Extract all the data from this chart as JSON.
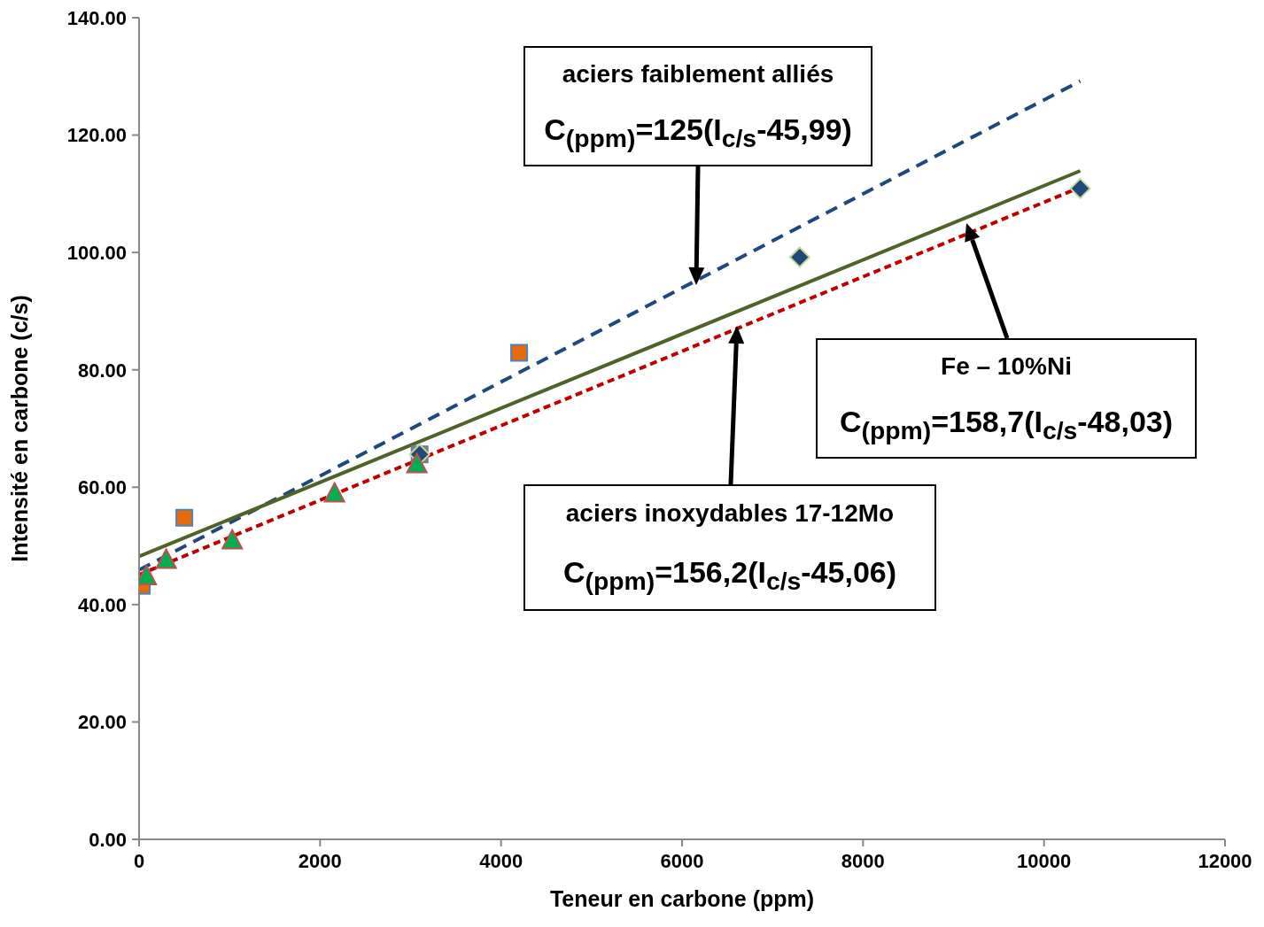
{
  "chart_data": {
    "type": "scatter",
    "xlabel": "Teneur en carbone (ppm)",
    "ylabel": "Intensité en carbone (c/s)",
    "xlim": [
      0,
      12000
    ],
    "xticks": [
      0,
      2000,
      4000,
      6000,
      8000,
      10000,
      12000
    ],
    "ylim": [
      0,
      140
    ],
    "yticks": [
      {
        "value": 0,
        "label": "0.00"
      },
      {
        "value": 20,
        "label": "20.00"
      },
      {
        "value": 40,
        "label": "40.00"
      },
      {
        "value": 60,
        "label": "60.00"
      },
      {
        "value": 80,
        "label": "80.00"
      },
      {
        "value": 100,
        "label": "100.00"
      },
      {
        "value": 120,
        "label": "120.00"
      },
      {
        "value": 140,
        "label": "140.00"
      }
    ],
    "grid": false,
    "series": [
      {
        "type": "line",
        "color": "#1f497d",
        "line_style": "dashed",
        "marker": "none",
        "x": [
          0,
          10400
        ],
        "values": [
          45.9,
          129.2
        ]
      },
      {
        "type": "line",
        "color": "#4f6228",
        "line_style": "solid",
        "marker": "none",
        "x": [
          0,
          10400
        ],
        "values": [
          48.2,
          113.9
        ]
      },
      {
        "type": "line",
        "color": "#c00000",
        "line_style": "dotted",
        "marker": "none",
        "x": [
          0,
          10400
        ],
        "values": [
          45.1,
          111.1
        ]
      },
      {
        "color": "#e46c0a",
        "marker": "square",
        "x": [
          30,
          500,
          3100,
          4200
        ],
        "values": [
          43.2,
          54.8,
          65.6,
          82.9
        ]
      },
      {
        "color": "#1f497d",
        "marker": "diamond",
        "x": [
          3100,
          7300,
          10400
        ],
        "values": [
          65.6,
          99.2,
          110.9
        ]
      },
      {
        "color": "#00b050",
        "marker": "triangle",
        "x": [
          80,
          300,
          1030,
          2160,
          3070
        ],
        "values": [
          44.8,
          47.6,
          50.9,
          58.9,
          63.9
        ]
      }
    ],
    "annotations": [
      "aciers faiblement alliés",
      "C$_{(ppm)}$=125(I$_{c/s}$-45,99)",
      "Fe – 10%Ni",
      "C$_{(ppm)}$=158,7(I$_{c/s}$-48,03)",
      "aciers inoxydables 17-12Mo",
      "C$_{(ppm)}$=156,2(I$_{c/s}$-45,06)"
    ]
  }
}
